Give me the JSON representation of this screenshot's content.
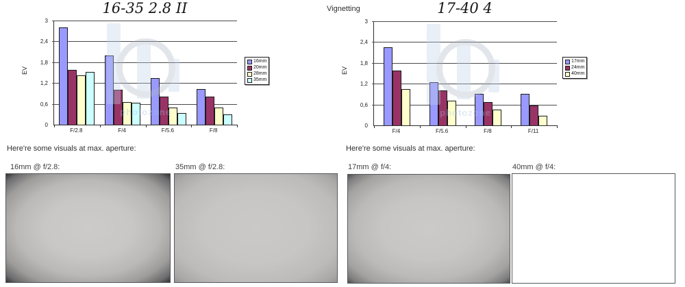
{
  "page": {
    "vignetting_label": "Vignetting",
    "watermark_text": "photozone"
  },
  "chart_data": [
    {
      "type": "bar",
      "title": "16-35 2.8 II",
      "ylabel": "EV",
      "ylim": [
        0,
        3
      ],
      "ytick_step": 0.6,
      "ytick_labels": [
        "3",
        "2,4",
        "1,8",
        "1,2",
        "0,6",
        "0"
      ],
      "categories": [
        "F/2.8",
        "F/4",
        "F/5.6",
        "F/8"
      ],
      "series": [
        {
          "name": "16mm",
          "color": "#9999FF",
          "values": [
            2.8,
            2.0,
            1.35,
            1.02
          ]
        },
        {
          "name": "20mm",
          "color": "#993366",
          "values": [
            1.58,
            1.0,
            0.8,
            0.8
          ]
        },
        {
          "name": "28mm",
          "color": "#FFFFCC",
          "values": [
            1.42,
            0.65,
            0.5,
            0.5
          ]
        },
        {
          "name": "35mm",
          "color": "#CCFFFF",
          "values": [
            1.52,
            0.63,
            0.33,
            0.3
          ]
        }
      ],
      "legend_position": "right",
      "grid": true
    },
    {
      "type": "bar",
      "title": "17-40 4",
      "ylabel": "EV",
      "ylim": [
        0,
        3
      ],
      "ytick_step": 0.6,
      "ytick_labels": [
        "3",
        "2,4",
        "1,8",
        "1,2",
        "0,6",
        "0"
      ],
      "categories": [
        "F/4",
        "F/5.6",
        "F/8",
        "F/11"
      ],
      "series": [
        {
          "name": "17mm",
          "color": "#9999FF",
          "values": [
            2.25,
            1.25,
            0.9,
            0.9
          ]
        },
        {
          "name": "24mm",
          "color": "#993366",
          "values": [
            1.57,
            1.0,
            0.68,
            0.57
          ]
        },
        {
          "name": "40mm",
          "color": "#FFFFCC",
          "values": [
            1.05,
            0.72,
            0.45,
            0.27
          ]
        }
      ],
      "legend_position": "right",
      "grid": true
    }
  ],
  "visuals": {
    "left": {
      "heading": "Here're some visuals at max. aperture:",
      "images": [
        {
          "label": "16mm @ f/2.8:",
          "vignette": "strong"
        },
        {
          "label": "35mm @ f/2.8:",
          "vignette": "mild"
        }
      ]
    },
    "right": {
      "heading": "Here're some visuals at max. aperture:",
      "images": [
        {
          "label": "17mm @ f/4:",
          "vignette": "moderate"
        },
        {
          "label": "40mm @ f/4:",
          "vignette": "faint"
        }
      ]
    }
  }
}
